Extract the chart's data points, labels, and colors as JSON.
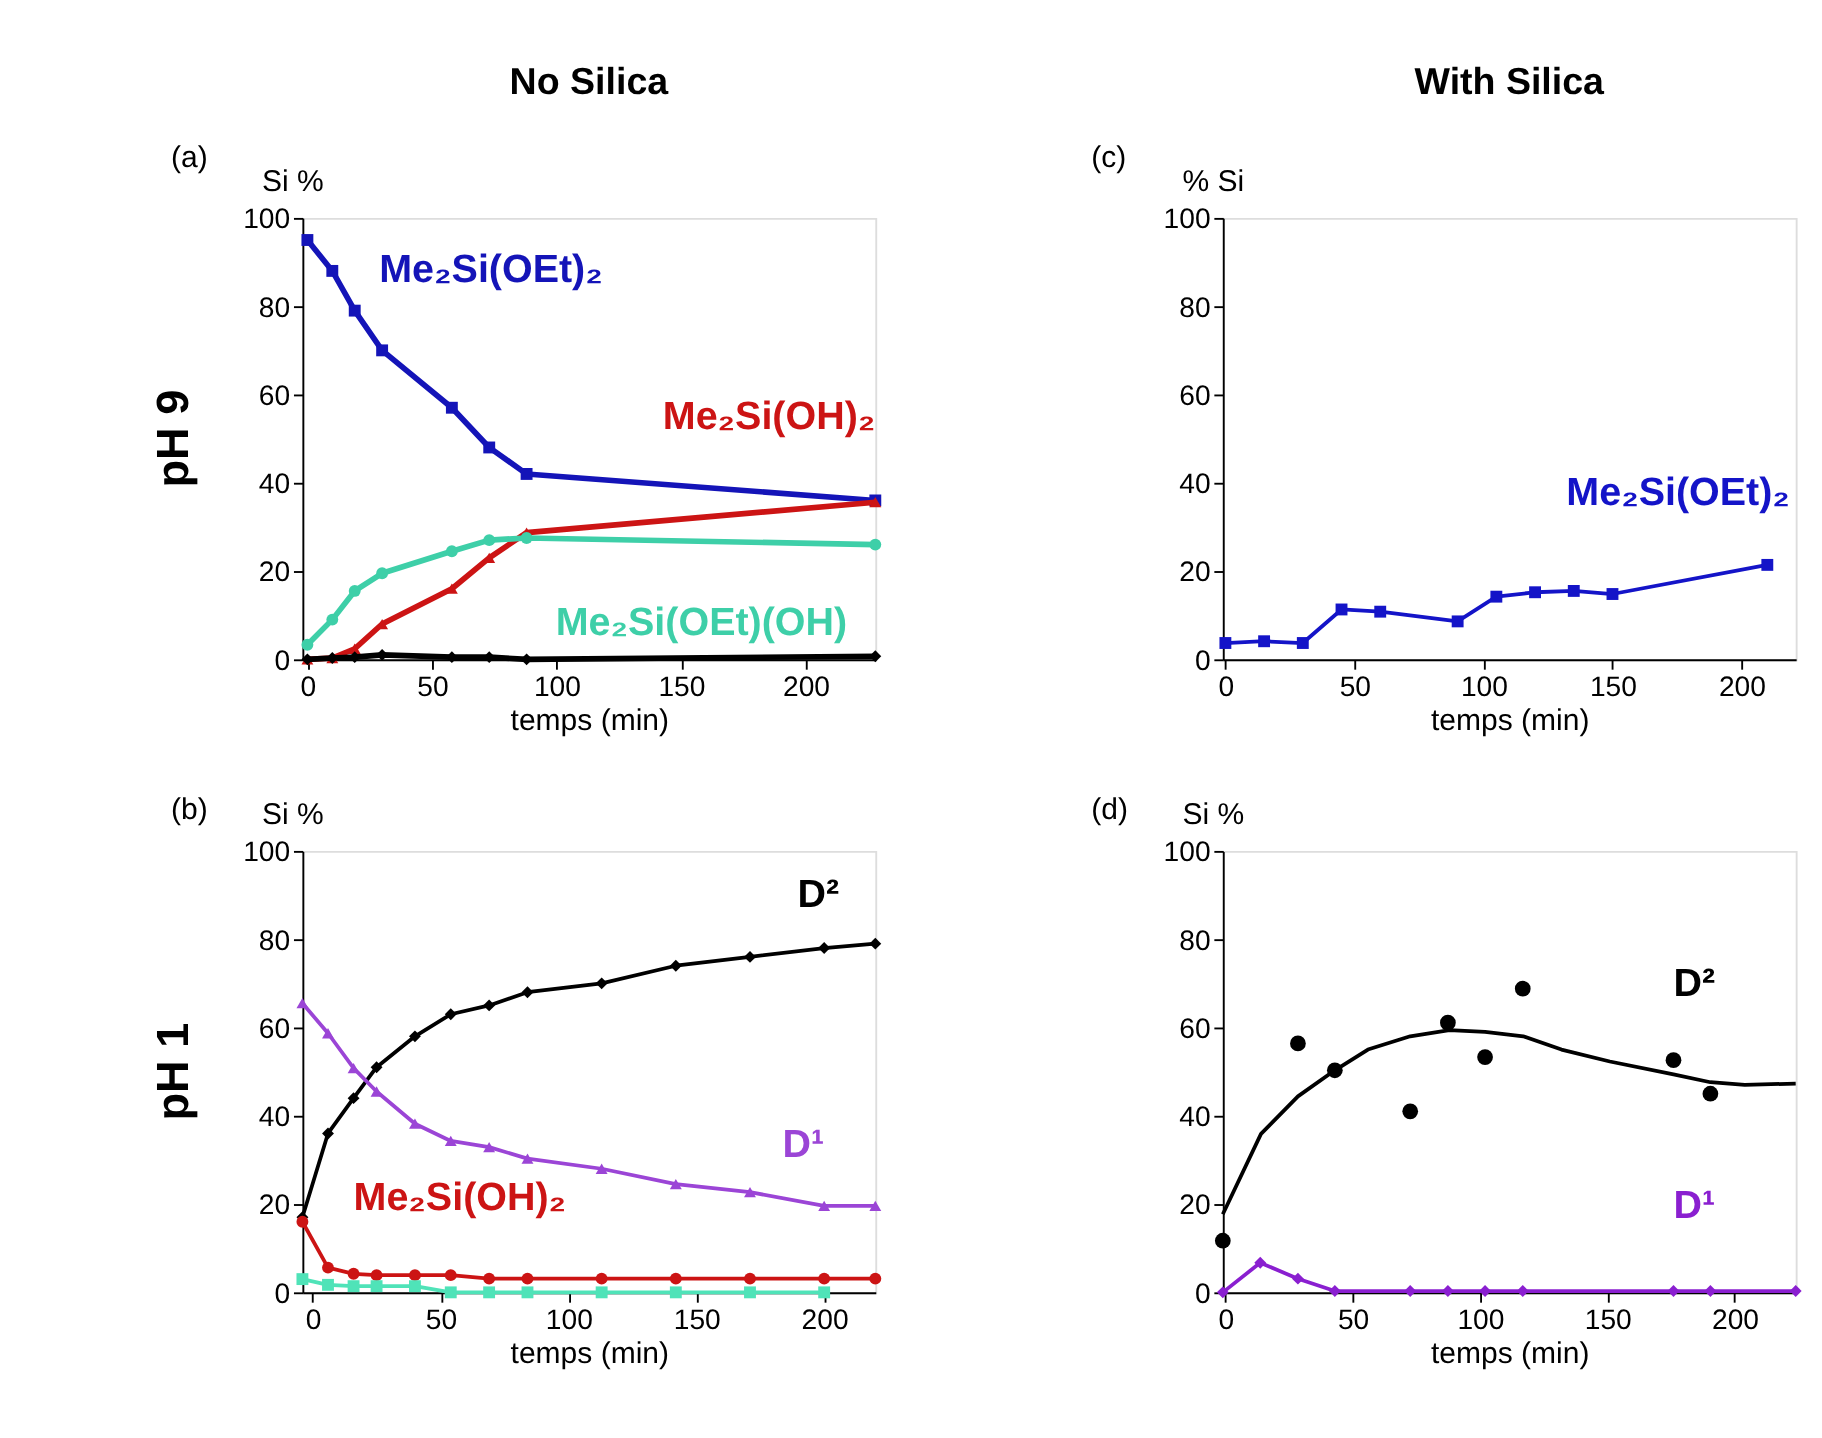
{
  "chart_data": [
    {
      "type": "line",
      "title": "No Silica",
      "xlabel": "temps (min)",
      "ylabel": "Si %",
      "annotations": [
        "(a)",
        "pH 9"
      ],
      "xlim": [
        -2,
        228
      ],
      "ylim": [
        0,
        100
      ],
      "xticks": [
        0,
        50,
        100,
        150,
        200
      ],
      "yticks": [
        0,
        20,
        40,
        60,
        80,
        100
      ],
      "series": [
        {
          "name": "Me₂Si(OEt)₂",
          "color": "#1414b8",
          "marker": "square",
          "x": [
            0,
            10,
            19,
            30,
            58,
            73,
            88,
            228
          ],
          "values": [
            95,
            88,
            79,
            70,
            57,
            48,
            42,
            36
          ]
        },
        {
          "name": "Me₂Si(OH)₂",
          "color": "#cc1414",
          "marker": "triangle",
          "x": [
            0,
            10,
            19,
            30,
            58,
            73,
            88,
            228
          ],
          "values": [
            0,
            0.3,
            2.4,
            8,
            16,
            23,
            28.7,
            35.6
          ]
        },
        {
          "name": "Me₂Si(OEt)(OH)",
          "color": "#3ecfa8",
          "marker": "circle",
          "x": [
            0,
            10,
            19,
            30,
            58,
            73,
            88,
            228
          ],
          "values": [
            3.3,
            9,
            15.5,
            19.5,
            24.5,
            27,
            27.5,
            26
          ]
        },
        {
          "color": "#000000",
          "marker": "diamond",
          "x": [
            0,
            10,
            19,
            30,
            58,
            73,
            88,
            228
          ],
          "values": [
            0,
            0.3,
            0.5,
            1,
            0.5,
            0.5,
            0,
            0.7
          ]
        }
      ]
    },
    {
      "type": "line",
      "title": "With Silica",
      "xlabel": "temps (min)",
      "ylabel": "% Si",
      "annotations": [
        "(c)"
      ],
      "xlim": [
        -1,
        221
      ],
      "ylim": [
        0,
        100
      ],
      "xticks": [
        0,
        50,
        100,
        150,
        200
      ],
      "yticks": [
        0,
        20,
        40,
        60,
        80,
        100
      ],
      "series": [
        {
          "name": "Me₂Si(OEt)₂",
          "color": "#1414c8",
          "marker": "square",
          "x": [
            0,
            15,
            30,
            45,
            60,
            90,
            105,
            120,
            135,
            150,
            210
          ],
          "values": [
            3.7,
            4.1,
            3.7,
            11.3,
            10.8,
            8.6,
            14.2,
            15.2,
            15.5,
            14.8,
            21.4
          ]
        }
      ]
    },
    {
      "type": "line",
      "xlabel": "temps (min)",
      "ylabel": "Si %",
      "annotations": [
        "(b)",
        "pH 1"
      ],
      "xlim": [
        -4,
        220
      ],
      "ylim": [
        0,
        100
      ],
      "xticks": [
        0,
        50,
        100,
        150,
        200
      ],
      "yticks": [
        0,
        20,
        40,
        60,
        80,
        100
      ],
      "series": [
        {
          "name": "D²",
          "color": "#000000",
          "marker": "diamond",
          "x": [
            -4,
            6,
            16,
            25,
            40,
            54,
            69,
            84,
            113,
            142,
            171,
            200,
            220
          ],
          "values": [
            17,
            36,
            44,
            51,
            58,
            63,
            65,
            68,
            70,
            74,
            76,
            78,
            79
          ]
        },
        {
          "name": "D¹",
          "color": "#9b45d6",
          "marker": "triangle",
          "x": [
            -4,
            6,
            16,
            25,
            40,
            54,
            69,
            84,
            113,
            142,
            171,
            200,
            220
          ],
          "values": [
            65.5,
            58.7,
            50.8,
            45.5,
            38.2,
            34.3,
            32.9,
            30.3,
            28,
            24.5,
            22.7,
            19.6,
            19.6
          ]
        },
        {
          "name": "Me₂Si(OH)₂",
          "color": "#cc1414",
          "marker": "circle",
          "x": [
            -4,
            6,
            16,
            25,
            40,
            54,
            69,
            84,
            113,
            142,
            171,
            200,
            220
          ],
          "values": [
            16,
            5.6,
            4.2,
            3.9,
            3.9,
            3.9,
            3.1,
            3.1,
            3.1,
            3.1,
            3.1,
            3.1,
            3.1
          ]
        },
        {
          "color": "#4fe3b8",
          "marker": "square",
          "x": [
            -4,
            6,
            16,
            25,
            40,
            54,
            69,
            84,
            113,
            142,
            171,
            200
          ],
          "values": [
            3,
            1.7,
            1.4,
            1.4,
            1.4,
            0,
            0,
            0,
            0,
            0,
            0,
            0
          ]
        }
      ]
    },
    {
      "type": "line",
      "xlabel": "temps (min)",
      "ylabel": "Si %",
      "annotations": [
        "(d)"
      ],
      "xlim": [
        -1,
        224
      ],
      "ylim": [
        0,
        100
      ],
      "xticks": [
        0,
        50,
        100,
        150,
        200
      ],
      "yticks": [
        0,
        20,
        40,
        60,
        80,
        100
      ],
      "series": [
        {
          "name": "D²",
          "color": "#000000",
          "type": "scatter",
          "marker": "circle",
          "x": [
            -1,
            28.5,
            43,
            72.6,
            87.4,
            102,
            116.8,
            176,
            190.5
          ],
          "values": [
            11.7,
            56.4,
            50.3,
            41,
            61.1,
            53.3,
            68.8,
            52.6,
            45
          ]
        },
        {
          "color": "#000000",
          "marker": "none",
          "x": [
            -1,
            14,
            28.5,
            43,
            56,
            72.6,
            88,
            102,
            117,
            132,
            151,
            176,
            190.5,
            204,
            224
          ],
          "values": [
            17.7,
            35.9,
            44.4,
            50.3,
            55,
            58,
            59.4,
            59,
            58,
            55,
            52.3,
            49.4,
            47.6,
            47,
            47.3
          ]
        },
        {
          "name": "D¹",
          "color": "#8a1fd0",
          "marker": "diamond",
          "x": [
            -1,
            13.7,
            28.5,
            43,
            72.6,
            87.4,
            102,
            116.8,
            176,
            190.5,
            224
          ],
          "values": [
            0,
            6.7,
            3.1,
            0.3,
            0.3,
            0.3,
            0.3,
            0.3,
            0.3,
            0.3,
            0.3
          ]
        }
      ]
    }
  ]
}
